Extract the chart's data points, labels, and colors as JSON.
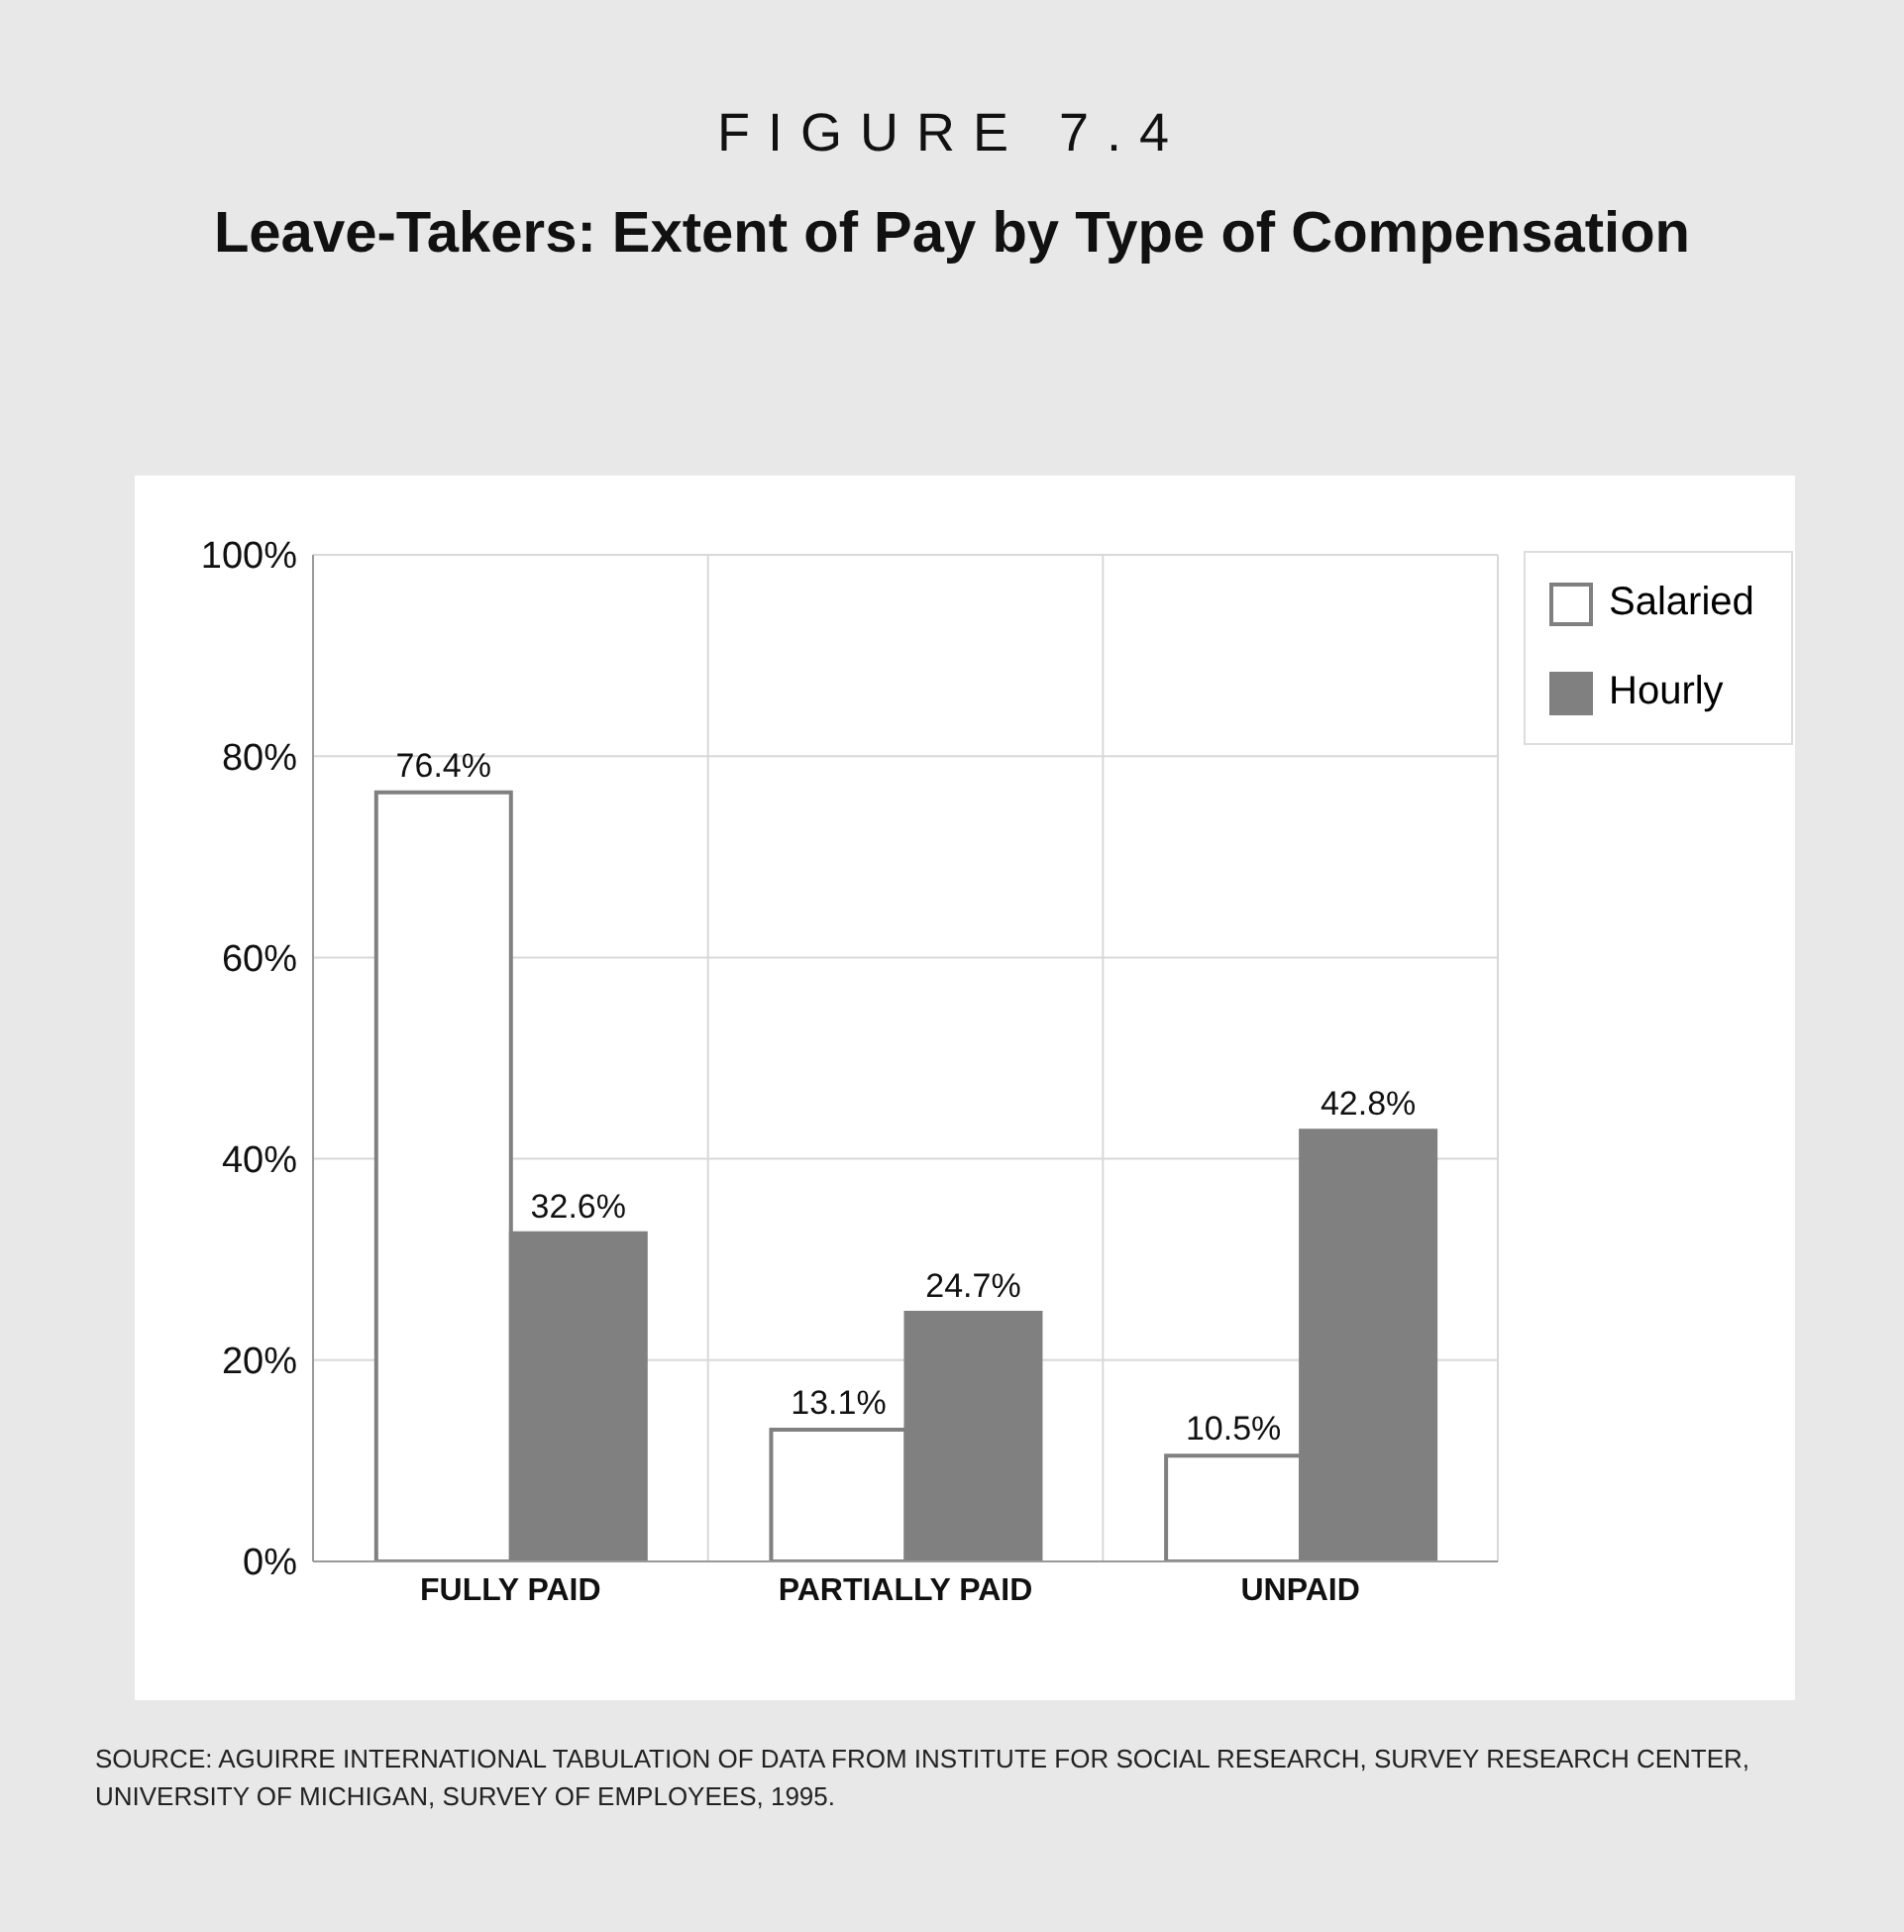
{
  "chart_data": {
    "type": "bar",
    "subtitle": "FIGURE 7.4",
    "title": "Leave-Takers: Extent of Pay by Type of Compensation",
    "categories": [
      "FULLY PAID",
      "PARTIALLY PAID",
      "UNPAID"
    ],
    "series": [
      {
        "name": "Salaried",
        "color": "#ffffff",
        "values": [
          76.4,
          13.1,
          10.5
        ],
        "value_labels": [
          "76.4%",
          "13.1%",
          "10.5%"
        ]
      },
      {
        "name": "Hourly",
        "color": "#808080",
        "values": [
          32.6,
          24.7,
          42.8
        ],
        "value_labels": [
          "32.6%",
          "24.7%",
          "42.8%"
        ]
      }
    ],
    "ylim": [
      0,
      100
    ],
    "yticks": [
      {
        "value": 0,
        "label": "0%"
      },
      {
        "value": 20,
        "label": "20%"
      },
      {
        "value": 40,
        "label": "40%"
      },
      {
        "value": 60,
        "label": "60%"
      },
      {
        "value": 80,
        "label": "80%"
      },
      {
        "value": 100,
        "label": "100%"
      }
    ],
    "grid": true,
    "legend": "top right",
    "annotations": [
      "SOURCE:  AGUIRRE INTERNATIONAL TABULATION OF DATA FROM INSTITUTE FOR SOCIAL RESEARCH, SURVEY RESEARCH CENTER, UNIVERSITY OF MICHIGAN,  SURVEY OF EMPLOYEES, 1995."
    ]
  }
}
